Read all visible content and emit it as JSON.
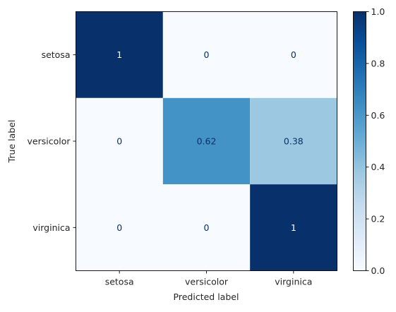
{
  "chart_data": {
    "type": "heatmap",
    "title": "",
    "xlabel": "Predicted label",
    "ylabel": "True label",
    "x_categories": [
      "setosa",
      "versicolor",
      "virginica"
    ],
    "y_categories": [
      "setosa",
      "versicolor",
      "virginica"
    ],
    "values": [
      [
        1,
        0,
        0
      ],
      [
        0,
        0.62,
        0.38
      ],
      [
        0,
        0,
        1
      ]
    ],
    "cell_labels": [
      [
        "1",
        "0",
        "0"
      ],
      [
        "0",
        "0.62",
        "0.38"
      ],
      [
        "0",
        "0",
        "1"
      ]
    ],
    "colormap": "Blues",
    "colorbar": {
      "min": 0,
      "max": 1,
      "ticks": [
        0.0,
        0.2,
        0.4,
        0.6,
        0.8,
        1.0
      ],
      "tick_labels": [
        "0.0",
        "0.2",
        "0.4",
        "0.6",
        "0.8",
        "1.0"
      ]
    }
  }
}
